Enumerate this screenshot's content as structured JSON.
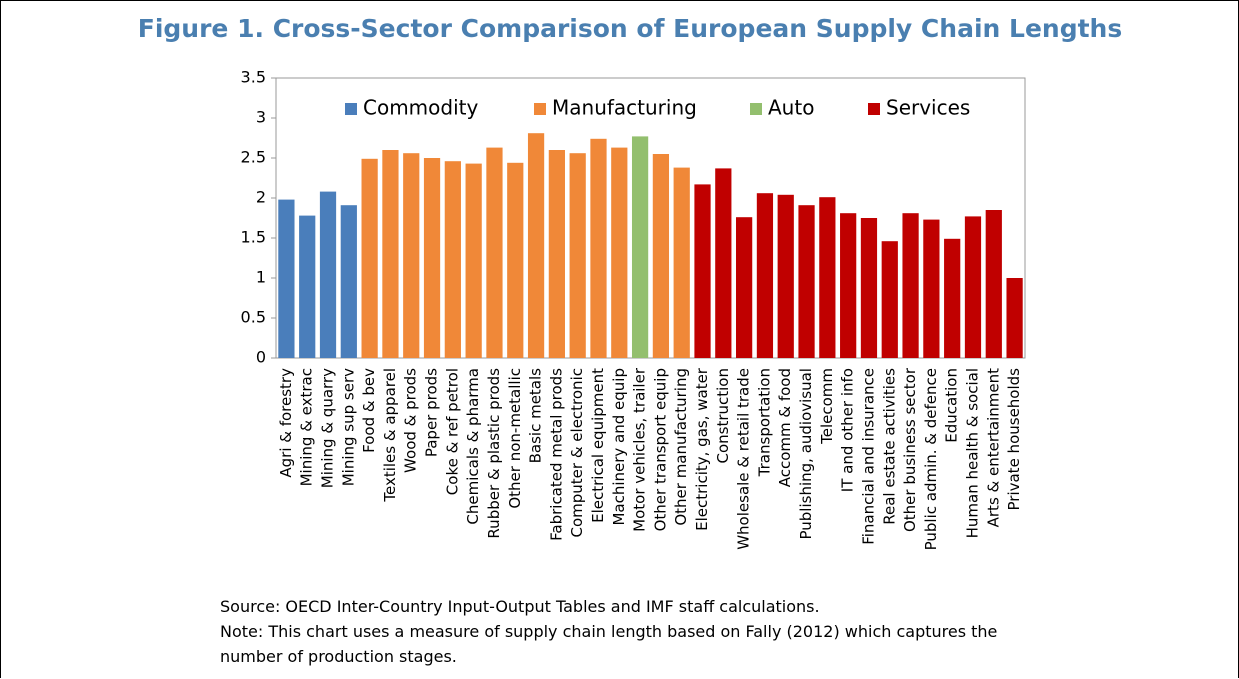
{
  "chart_data": {
    "type": "bar",
    "title": "Figure 1. Cross-Sector Comparison of European Supply Chain Lengths",
    "categories": [
      "Agri & forestry",
      "Mining & extrac",
      "Mining & quarry",
      "Mining sup serv",
      "Food & bev",
      "Textiles & apparel",
      "Wood & prods",
      "Paper prods",
      "Coke & ref petrol",
      "Chemicals & pharma",
      "Rubber & plastic prods",
      "Other non-metallic",
      "Basic metals",
      "Fabricated metal prods",
      "Computer & electronic",
      "Electrical equipment",
      "Machinery and equip",
      "Motor vehicles, trailer",
      "Other transport equip",
      "Other manufacturing",
      "Electricity, gas, water",
      "Construction",
      "Wholesale & retail trade",
      "Transportation",
      "Accomm & food",
      "Publishing, audiovisual",
      "Telecomm",
      "IT and other info",
      "Financial and insurance",
      "Real estate activities",
      "Other business sector",
      "Public admin. & defence",
      "Education",
      "Human health & social",
      "Arts & entertainment",
      "Private households"
    ],
    "series": [
      {
        "name": "Commodity",
        "color": "#4a7ebb",
        "values": [
          1.98,
          1.78,
          2.08,
          1.91,
          null,
          null,
          null,
          null,
          null,
          null,
          null,
          null,
          null,
          null,
          null,
          null,
          null,
          null,
          null,
          null,
          null,
          null,
          null,
          null,
          null,
          null,
          null,
          null,
          null,
          null,
          null,
          null,
          null,
          null,
          null,
          null
        ]
      },
      {
        "name": "Manufacturing",
        "color": "#f08838",
        "values": [
          null,
          null,
          null,
          null,
          2.49,
          2.6,
          2.56,
          2.5,
          2.46,
          2.43,
          2.63,
          2.44,
          2.81,
          2.6,
          2.56,
          2.74,
          2.63,
          null,
          2.55,
          2.38,
          null,
          null,
          null,
          null,
          null,
          null,
          null,
          null,
          null,
          null,
          null,
          null,
          null,
          null,
          null,
          null
        ]
      },
      {
        "name": "Auto",
        "color": "#93bf6e",
        "values": [
          null,
          null,
          null,
          null,
          null,
          null,
          null,
          null,
          null,
          null,
          null,
          null,
          null,
          null,
          null,
          null,
          null,
          2.77,
          null,
          null,
          null,
          null,
          null,
          null,
          null,
          null,
          null,
          null,
          null,
          null,
          null,
          null,
          null,
          null,
          null,
          null
        ]
      },
      {
        "name": "Services",
        "color": "#c00000",
        "values": [
          null,
          null,
          null,
          null,
          null,
          null,
          null,
          null,
          null,
          null,
          null,
          null,
          null,
          null,
          null,
          null,
          null,
          null,
          null,
          null,
          2.17,
          2.37,
          1.76,
          2.06,
          2.04,
          1.91,
          2.01,
          1.81,
          1.75,
          1.46,
          1.81,
          1.73,
          1.49,
          1.77,
          1.85,
          1.0
        ]
      }
    ],
    "ylim": [
      0,
      3.5
    ],
    "yticks": [
      0,
      0.5,
      1,
      1.5,
      2,
      2.5,
      3,
      3.5
    ],
    "legend": "top",
    "source": "Source: OECD Inter-Country Input-Output Tables and IMF staff calculations.",
    "note": "Note: This chart uses a measure of supply chain length based on Fally (2012) which captures the number of production stages."
  }
}
